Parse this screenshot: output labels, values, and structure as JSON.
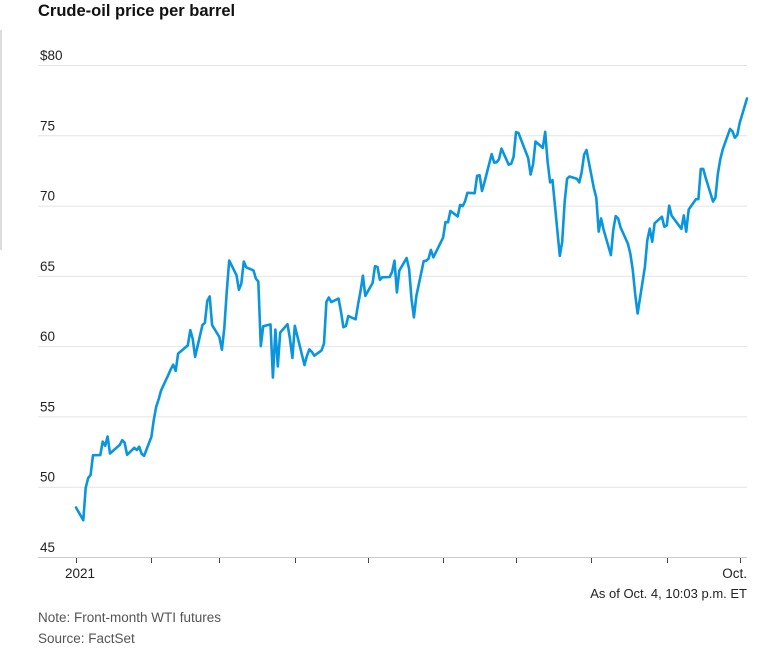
{
  "page": {
    "title": "Crude-oil price per barrel",
    "as_of": "As of Oct. 4, 10:03 p.m. ET",
    "note": "Note: Front-month WTI futures",
    "source": "Source: FactSet"
  },
  "chart_data": {
    "type": "line",
    "title": "Crude-oil price per barrel",
    "series_name": "Front-month WTI futures price ($ per barrel)",
    "line_color": "#0a96dc",
    "grid_color": "#e4e4e4",
    "axis_color": "#cccccc",
    "tick_color": "#444444",
    "label_color": "#222222",
    "ylim": [
      45,
      80
    ],
    "y_ticks": [
      {
        "value": 80,
        "label": "$80"
      },
      {
        "value": 75,
        "label": "75"
      },
      {
        "value": 70,
        "label": "70"
      },
      {
        "value": 65,
        "label": "65"
      },
      {
        "value": 60,
        "label": "60"
      },
      {
        "value": 55,
        "label": "55"
      },
      {
        "value": 50,
        "label": "50"
      },
      {
        "value": 45,
        "label": "45"
      }
    ],
    "x_ticks": [
      {
        "day": 1,
        "label": "2021"
      },
      {
        "day": 32,
        "label": ""
      },
      {
        "day": 60,
        "label": ""
      },
      {
        "day": 91,
        "label": ""
      },
      {
        "day": 121,
        "label": ""
      },
      {
        "day": 152,
        "label": ""
      },
      {
        "day": 182,
        "label": ""
      },
      {
        "day": 213,
        "label": ""
      },
      {
        "day": 244,
        "label": ""
      },
      {
        "day": 274,
        "label": "Oct."
      }
    ],
    "x_domain_days": [
      1,
      277
    ],
    "points": [
      [
        1,
        48.52
      ],
      [
        4,
        47.62
      ],
      [
        5,
        49.93
      ],
      [
        6,
        50.63
      ],
      [
        7,
        50.83
      ],
      [
        8,
        52.24
      ],
      [
        11,
        52.25
      ],
      [
        12,
        53.21
      ],
      [
        13,
        52.91
      ],
      [
        14,
        53.57
      ],
      [
        15,
        52.36
      ],
      [
        19,
        52.98
      ],
      [
        20,
        53.31
      ],
      [
        21,
        53.13
      ],
      [
        22,
        52.27
      ],
      [
        25,
        52.77
      ],
      [
        26,
        52.61
      ],
      [
        27,
        52.85
      ],
      [
        28,
        52.34
      ],
      [
        29,
        52.2
      ],
      [
        32,
        53.55
      ],
      [
        33,
        54.76
      ],
      [
        34,
        55.69
      ],
      [
        35,
        56.23
      ],
      [
        36,
        56.85
      ],
      [
        39,
        57.97
      ],
      [
        40,
        58.36
      ],
      [
        41,
        58.68
      ],
      [
        42,
        58.24
      ],
      [
        43,
        59.47
      ],
      [
        47,
        60.05
      ],
      [
        48,
        61.14
      ],
      [
        49,
        60.52
      ],
      [
        50,
        59.24
      ],
      [
        53,
        61.49
      ],
      [
        54,
        61.67
      ],
      [
        55,
        63.22
      ],
      [
        56,
        63.53
      ],
      [
        57,
        61.5
      ],
      [
        60,
        60.64
      ],
      [
        61,
        59.75
      ],
      [
        62,
        61.28
      ],
      [
        63,
        63.83
      ],
      [
        64,
        66.09
      ],
      [
        67,
        65.05
      ],
      [
        68,
        64.01
      ],
      [
        69,
        64.44
      ],
      [
        70,
        66.02
      ],
      [
        71,
        65.61
      ],
      [
        74,
        65.39
      ],
      [
        75,
        64.8
      ],
      [
        76,
        64.6
      ],
      [
        77,
        60.0
      ],
      [
        78,
        61.42
      ],
      [
        81,
        61.55
      ],
      [
        82,
        57.76
      ],
      [
        83,
        61.18
      ],
      [
        84,
        58.56
      ],
      [
        85,
        60.97
      ],
      [
        88,
        61.56
      ],
      [
        89,
        60.55
      ],
      [
        90,
        59.16
      ],
      [
        91,
        61.45
      ],
      [
        95,
        58.65
      ],
      [
        96,
        59.33
      ],
      [
        97,
        59.77
      ],
      [
        98,
        59.6
      ],
      [
        99,
        59.32
      ],
      [
        102,
        59.7
      ],
      [
        103,
        60.18
      ],
      [
        104,
        63.15
      ],
      [
        105,
        63.46
      ],
      [
        106,
        63.13
      ],
      [
        109,
        63.38
      ],
      [
        110,
        62.44
      ],
      [
        111,
        61.35
      ],
      [
        112,
        61.43
      ],
      [
        113,
        62.14
      ],
      [
        116,
        61.91
      ],
      [
        117,
        62.94
      ],
      [
        118,
        63.86
      ],
      [
        119,
        65.01
      ],
      [
        120,
        63.58
      ],
      [
        123,
        64.49
      ],
      [
        124,
        65.69
      ],
      [
        125,
        65.63
      ],
      [
        126,
        64.71
      ],
      [
        127,
        64.9
      ],
      [
        130,
        64.92
      ],
      [
        131,
        65.28
      ],
      [
        132,
        66.08
      ],
      [
        133,
        63.82
      ],
      [
        134,
        65.37
      ],
      [
        137,
        66.27
      ],
      [
        138,
        65.49
      ],
      [
        139,
        63.36
      ],
      [
        140,
        62.05
      ],
      [
        141,
        63.58
      ],
      [
        144,
        66.05
      ],
      [
        145,
        66.07
      ],
      [
        146,
        66.21
      ],
      [
        147,
        66.85
      ],
      [
        148,
        66.32
      ],
      [
        152,
        67.72
      ],
      [
        153,
        68.83
      ],
      [
        154,
        68.81
      ],
      [
        155,
        69.62
      ],
      [
        158,
        69.23
      ],
      [
        159,
        70.05
      ],
      [
        160,
        69.96
      ],
      [
        161,
        70.29
      ],
      [
        162,
        70.91
      ],
      [
        165,
        70.88
      ],
      [
        166,
        72.12
      ],
      [
        167,
        72.15
      ],
      [
        168,
        71.04
      ],
      [
        169,
        71.64
      ],
      [
        172,
        73.66
      ],
      [
        173,
        73.06
      ],
      [
        174,
        73.08
      ],
      [
        175,
        73.3
      ],
      [
        176,
        74.05
      ],
      [
        179,
        72.91
      ],
      [
        180,
        72.98
      ],
      [
        181,
        73.47
      ],
      [
        182,
        75.23
      ],
      [
        183,
        75.16
      ],
      [
        187,
        73.37
      ],
      [
        188,
        72.2
      ],
      [
        189,
        72.94
      ],
      [
        190,
        74.56
      ],
      [
        193,
        74.1
      ],
      [
        194,
        75.25
      ],
      [
        195,
        73.13
      ],
      [
        196,
        71.65
      ],
      [
        197,
        71.81
      ],
      [
        200,
        66.42
      ],
      [
        201,
        67.42
      ],
      [
        202,
        70.3
      ],
      [
        203,
        71.91
      ],
      [
        204,
        72.07
      ],
      [
        207,
        71.91
      ],
      [
        208,
        71.65
      ],
      [
        209,
        72.39
      ],
      [
        210,
        73.62
      ],
      [
        211,
        73.95
      ],
      [
        214,
        71.26
      ],
      [
        215,
        70.56
      ],
      [
        216,
        68.15
      ],
      [
        217,
        69.09
      ],
      [
        218,
        68.28
      ],
      [
        221,
        66.48
      ],
      [
        222,
        68.29
      ],
      [
        223,
        69.25
      ],
      [
        224,
        69.09
      ],
      [
        225,
        68.44
      ],
      [
        228,
        67.29
      ],
      [
        229,
        66.59
      ],
      [
        230,
        65.46
      ],
      [
        231,
        63.69
      ],
      [
        232,
        62.32
      ],
      [
        235,
        65.64
      ],
      [
        236,
        67.54
      ],
      [
        237,
        68.36
      ],
      [
        238,
        67.42
      ],
      [
        239,
        68.74
      ],
      [
        242,
        69.21
      ],
      [
        243,
        68.5
      ],
      [
        244,
        68.59
      ],
      [
        245,
        69.99
      ],
      [
        246,
        69.29
      ],
      [
        250,
        68.35
      ],
      [
        251,
        69.3
      ],
      [
        252,
        68.14
      ],
      [
        253,
        69.72
      ],
      [
        256,
        70.45
      ],
      [
        257,
        70.46
      ],
      [
        258,
        72.61
      ],
      [
        259,
        72.61
      ],
      [
        260,
        71.97
      ],
      [
        263,
        70.29
      ],
      [
        264,
        70.56
      ],
      [
        265,
        72.23
      ],
      [
        266,
        73.3
      ],
      [
        267,
        73.98
      ],
      [
        270,
        75.45
      ],
      [
        271,
        75.29
      ],
      [
        272,
        74.83
      ],
      [
        273,
        75.03
      ],
      [
        274,
        75.88
      ],
      [
        277,
        77.62
      ]
    ]
  }
}
